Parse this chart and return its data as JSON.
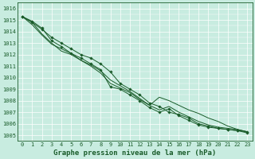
{
  "title": "Graphe pression niveau de la mer (hPa)",
  "x_labels": [
    "0",
    "1",
    "2",
    "3",
    "4",
    "5",
    "6",
    "7",
    "8",
    "9",
    "10",
    "11",
    "12",
    "13",
    "14",
    "15",
    "16",
    "17",
    "18",
    "19",
    "20",
    "21",
    "22",
    "23"
  ],
  "ylim": [
    1004.5,
    1016.5
  ],
  "xlim": [
    -0.5,
    23.5
  ],
  "yticks": [
    1005,
    1006,
    1007,
    1008,
    1009,
    1010,
    1011,
    1012,
    1013,
    1014,
    1015,
    1016
  ],
  "background_color": "#c8ece0",
  "grid_color": "#aad4c0",
  "line_color": "#1a5c2a",
  "series": [
    [
      1015.3,
      1014.8,
      1014.2,
      1013.5,
      1013.0,
      1012.5,
      1012.0,
      1011.7,
      1011.2,
      1010.5,
      1009.5,
      1009.0,
      1008.5,
      1007.8,
      1007.5,
      1007.0,
      1006.8,
      1006.5,
      1006.0,
      1005.8,
      1005.6,
      1005.5,
      1005.4,
      1005.2
    ],
    [
      1015.3,
      1014.8,
      1013.8,
      1013.0,
      1012.3,
      1012.0,
      1011.5,
      1011.1,
      1010.6,
      1009.8,
      1009.3,
      1008.8,
      1008.2,
      1007.6,
      1007.2,
      1007.5,
      1007.0,
      1006.6,
      1006.2,
      1005.9,
      1005.7,
      1005.6,
      1005.5,
      1005.3
    ],
    [
      1015.3,
      1014.9,
      1014.3,
      1013.2,
      1012.7,
      1012.1,
      1011.7,
      1011.2,
      1010.7,
      1009.2,
      1009.0,
      1008.5,
      1008.0,
      1007.4,
      1007.0,
      1007.3,
      1006.7,
      1006.3,
      1005.9,
      1005.7,
      1005.6,
      1005.5,
      1005.4,
      1005.3
    ],
    [
      1015.3,
      1014.6,
      1013.7,
      1012.9,
      1012.5,
      1012.1,
      1011.5,
      1011.0,
      1010.4,
      1009.5,
      1009.1,
      1008.7,
      1008.1,
      1007.6,
      1008.3,
      1008.0,
      1007.6,
      1007.2,
      1006.9,
      1006.5,
      1006.2,
      1005.8,
      1005.5,
      1005.3
    ]
  ],
  "marker_series": [
    0,
    2
  ],
  "marker_style": "D",
  "marker_size": 1.8,
  "line_width": 0.7,
  "font_color": "#1a5c2a",
  "tick_fontsize": 5.0,
  "title_fontsize": 6.5
}
